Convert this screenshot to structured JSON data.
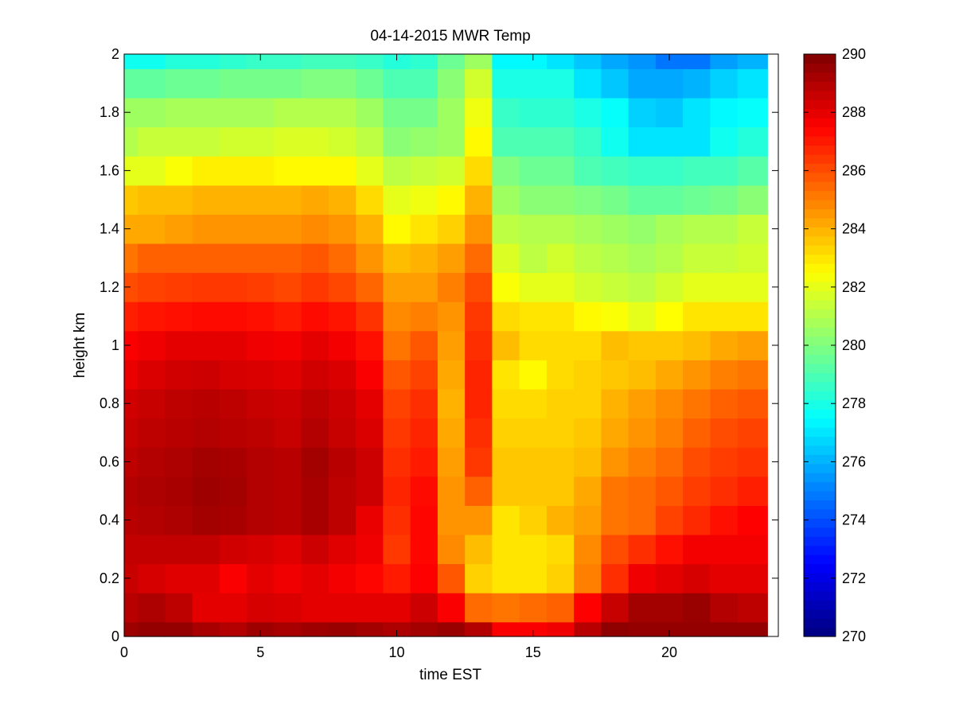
{
  "chart_data": {
    "type": "heatmap",
    "title": "04-14-2015 MWR Temp",
    "xlabel": "time EST",
    "ylabel": "height km",
    "xlim": [
      0,
      24
    ],
    "ylim": [
      0,
      2
    ],
    "x_extent": [
      0,
      23.6
    ],
    "xticks": [
      0,
      5,
      10,
      15,
      20
    ],
    "yticks": [
      0,
      0.2,
      0.4,
      0.6,
      0.8,
      1,
      1.2,
      1.4,
      1.6,
      1.8,
      2
    ],
    "colormap": "jet",
    "clim": [
      270,
      290
    ],
    "colorbar_ticks": [
      270,
      272,
      274,
      276,
      278,
      280,
      282,
      284,
      286,
      288,
      290
    ],
    "colorbar_location": "right",
    "grid": false,
    "row_bottoms_km": [
      0,
      0.05,
      0.15,
      0.25,
      0.35,
      0.45,
      0.55,
      0.65,
      0.75,
      0.85,
      0.95,
      1.05,
      1.15,
      1.25,
      1.35,
      1.45,
      1.55,
      1.65,
      1.75,
      1.85,
      1.95
    ],
    "row_tops_km": [
      0.05,
      0.15,
      0.25,
      0.35,
      0.45,
      0.55,
      0.65,
      0.75,
      0.85,
      0.95,
      1.05,
      1.15,
      1.25,
      1.35,
      1.45,
      1.55,
      1.65,
      1.75,
      1.85,
      1.95,
      2.0
    ],
    "column_edges_hours": [
      0,
      0.5,
      1.5,
      2.5,
      3.5,
      4.5,
      5.5,
      6.5,
      7.5,
      8.5,
      9.5,
      10.5,
      11.5,
      12.5,
      13.5,
      14.5,
      15.5,
      16.5,
      17.5,
      18.5,
      19.5,
      20.5,
      21.5,
      22.5,
      23.6
    ],
    "values": [
      [
        289.4,
        289.6,
        289.6,
        289.2,
        289.0,
        289.4,
        289.2,
        289.4,
        289.5,
        289.3,
        289.1,
        289.3,
        289.5,
        289.0,
        287.6,
        287.6,
        287.8,
        288.9,
        289.7,
        289.6,
        289.6,
        289.6,
        289.6,
        289.6
      ],
      [
        288.9,
        289.1,
        288.8,
        288.0,
        288.0,
        288.3,
        288.2,
        288.0,
        288.0,
        288.0,
        288.0,
        288.5,
        287.6,
        285.4,
        285.2,
        285.4,
        285.6,
        287.5,
        288.6,
        289.3,
        289.3,
        289.5,
        289.0,
        288.8
      ],
      [
        288.6,
        288.3,
        288.1,
        288.1,
        287.6,
        288.0,
        287.8,
        288.0,
        287.7,
        287.4,
        287.0,
        287.5,
        285.8,
        283.4,
        283.0,
        283.0,
        283.4,
        285.0,
        286.6,
        287.8,
        288.0,
        288.3,
        288.0,
        288.0
      ],
      [
        288.7,
        288.7,
        288.7,
        288.7,
        288.4,
        288.3,
        288.1,
        288.5,
        288.1,
        287.8,
        286.4,
        287.4,
        284.8,
        283.8,
        283.0,
        283.0,
        283.2,
        284.8,
        286.0,
        286.6,
        287.2,
        287.7,
        287.7,
        287.7
      ],
      [
        288.9,
        289.0,
        289.1,
        289.3,
        289.2,
        289.0,
        288.9,
        289.2,
        288.8,
        287.9,
        286.6,
        287.4,
        284.6,
        284.6,
        283.0,
        283.4,
        284.0,
        284.4,
        285.2,
        285.4,
        286.2,
        286.7,
        287.2,
        287.5
      ],
      [
        289.0,
        289.1,
        289.2,
        289.4,
        289.3,
        289.0,
        288.9,
        289.2,
        288.8,
        288.5,
        286.8,
        287.3,
        284.6,
        285.6,
        283.6,
        283.6,
        283.6,
        284.2,
        285.2,
        285.4,
        285.8,
        286.3,
        286.6,
        286.9
      ],
      [
        288.8,
        289.0,
        289.1,
        289.3,
        289.2,
        289.0,
        288.9,
        289.3,
        288.9,
        288.5,
        286.6,
        287.0,
        284.4,
        286.4,
        283.6,
        283.6,
        283.6,
        283.8,
        284.6,
        285.0,
        285.4,
        286.0,
        286.3,
        286.5
      ],
      [
        288.6,
        288.8,
        288.9,
        289.0,
        288.9,
        288.8,
        288.6,
        289.0,
        288.6,
        288.2,
        286.4,
        286.8,
        284.2,
        286.6,
        283.4,
        283.4,
        283.4,
        283.6,
        284.2,
        284.6,
        285.0,
        285.6,
        286.0,
        286.2
      ],
      [
        288.4,
        288.6,
        288.8,
        288.9,
        288.8,
        288.6,
        288.5,
        288.8,
        288.5,
        288.0,
        286.2,
        286.6,
        284.0,
        286.8,
        283.2,
        283.2,
        283.4,
        283.4,
        284.0,
        284.4,
        284.8,
        285.2,
        285.6,
        285.8
      ],
      [
        287.9,
        288.2,
        288.4,
        288.5,
        288.3,
        288.2,
        288.1,
        288.4,
        288.2,
        287.6,
        285.8,
        286.2,
        284.2,
        286.8,
        283.0,
        282.6,
        283.2,
        283.4,
        283.6,
        283.8,
        284.2,
        284.6,
        285.0,
        285.2
      ],
      [
        287.6,
        287.8,
        288.0,
        288.0,
        288.0,
        287.8,
        287.7,
        288.0,
        287.7,
        287.2,
        285.2,
        285.8,
        284.4,
        286.6,
        283.8,
        283.2,
        283.2,
        283.2,
        283.8,
        283.6,
        283.6,
        283.8,
        284.2,
        284.4
      ],
      [
        286.9,
        287.1,
        287.2,
        287.3,
        287.3,
        287.2,
        287.0,
        287.3,
        287.1,
        286.5,
        284.8,
        285.0,
        284.6,
        286.4,
        283.2,
        283.0,
        283.0,
        282.6,
        282.4,
        282.0,
        282.5,
        283.0,
        283.0,
        283.0
      ],
      [
        286.0,
        286.2,
        286.3,
        286.4,
        286.4,
        286.3,
        286.1,
        286.4,
        286.1,
        285.5,
        284.4,
        284.4,
        285.0,
        286.0,
        282.4,
        282.0,
        282.0,
        281.6,
        281.4,
        281.2,
        281.6,
        282.0,
        282.0,
        282.0
      ],
      [
        285.2,
        285.6,
        285.6,
        285.6,
        285.6,
        285.6,
        285.6,
        285.8,
        285.4,
        284.6,
        283.8,
        284.0,
        284.4,
        285.4,
        281.8,
        281.2,
        281.6,
        281.2,
        281.0,
        280.8,
        281.0,
        281.4,
        281.4,
        281.6
      ],
      [
        284.2,
        284.2,
        284.4,
        284.6,
        284.6,
        284.6,
        284.6,
        284.8,
        284.6,
        284.0,
        282.6,
        283.0,
        283.4,
        284.6,
        281.2,
        281.0,
        281.0,
        280.8,
        280.6,
        280.4,
        280.8,
        281.0,
        281.0,
        281.4
      ],
      [
        283.6,
        283.8,
        283.8,
        284.0,
        284.0,
        284.0,
        284.0,
        284.2,
        284.0,
        283.2,
        282.0,
        282.2,
        282.6,
        284.0,
        280.6,
        280.2,
        280.2,
        280.0,
        279.8,
        279.4,
        279.4,
        279.6,
        279.8,
        280.2
      ],
      [
        282.0,
        282.0,
        282.4,
        282.8,
        282.8,
        282.8,
        282.6,
        282.6,
        282.6,
        282.0,
        281.2,
        281.4,
        281.6,
        283.2,
        280.0,
        279.6,
        279.6,
        279.0,
        278.8,
        278.6,
        278.6,
        278.8,
        278.8,
        279.2
      ],
      [
        281.0,
        281.4,
        281.4,
        281.4,
        281.6,
        281.6,
        281.8,
        281.8,
        281.6,
        281.2,
        280.2,
        280.4,
        280.6,
        282.6,
        279.0,
        279.0,
        279.0,
        278.6,
        277.8,
        277.0,
        277.0,
        277.0,
        277.8,
        278.2
      ],
      [
        280.6,
        280.6,
        280.8,
        280.8,
        280.8,
        280.8,
        281.0,
        281.0,
        281.0,
        280.6,
        279.8,
        279.8,
        280.6,
        282.2,
        278.6,
        278.4,
        278.4,
        278.0,
        277.6,
        276.6,
        276.4,
        277.0,
        277.4,
        277.6
      ],
      [
        279.4,
        279.4,
        279.6,
        279.6,
        279.8,
        279.8,
        279.8,
        280.0,
        280.0,
        279.6,
        279.0,
        279.0,
        280.2,
        281.6,
        278.0,
        278.0,
        278.0,
        277.0,
        276.4,
        275.8,
        275.8,
        276.0,
        276.6,
        277.0
      ],
      [
        277.8,
        277.8,
        278.2,
        278.2,
        278.4,
        278.6,
        278.6,
        278.8,
        278.8,
        278.6,
        278.2,
        278.4,
        279.6,
        280.6,
        277.4,
        277.4,
        277.0,
        276.4,
        275.8,
        275.4,
        274.8,
        274.8,
        275.6,
        276.0
      ]
    ]
  }
}
